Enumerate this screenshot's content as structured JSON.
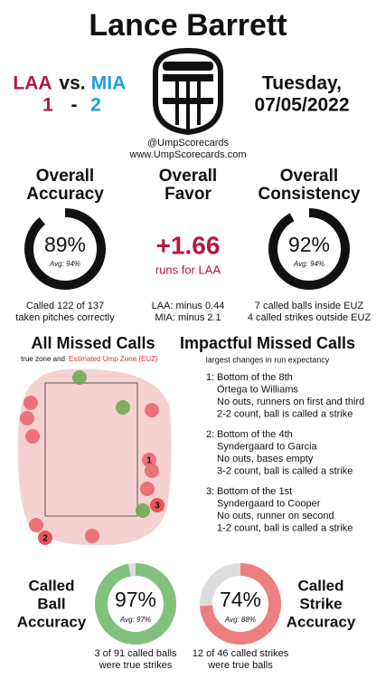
{
  "header": {
    "title": "Lance Barrett",
    "away_team": "LAA",
    "vs": "vs.",
    "home_team": "MIA",
    "away_score": "1",
    "dash": "-",
    "home_score": "2",
    "date_line1": "Tuesday,",
    "date_line2": "07/05/2022",
    "handle": "@UmpScorecards",
    "website": "www.UmpScorecards.com"
  },
  "stats": {
    "accuracy": {
      "title_line1": "Overall",
      "title_line2": "Accuracy",
      "value": 89,
      "label": "89%",
      "avg": "Avg: 94%",
      "note_line1": "Called 122 of 137",
      "note_line2": "taken pitches correctly"
    },
    "favor": {
      "title_line1": "Overall",
      "title_line2": "Favor",
      "value": "+1.66",
      "sub": "runs for LAA",
      "note_line1": "LAA: minus 0.44",
      "note_line2": "MIA: minus 2.1"
    },
    "consistency": {
      "title_line1": "Overall",
      "title_line2": "Consistency",
      "value": 92,
      "label": "92%",
      "avg": "Avg: 94%",
      "note_line1": "7 called balls inside EUZ",
      "note_line2": "4 called strikes outside EUZ"
    }
  },
  "missed_calls": {
    "title": "All Missed Calls",
    "legend_prefix": "true zone and",
    "legend_euz": "Estimated Ump Zone (EUZ)",
    "markers": [
      "1",
      "2",
      "3"
    ]
  },
  "impactful": {
    "title": "Impactful Missed Calls",
    "subtitle": "largest changes in run expectancy",
    "items": [
      {
        "num": "1:",
        "lines": [
          "Bottom of the 8th",
          "Ortega to Williams",
          "No outs, runners on first and third",
          "2-2 count, ball is called a strike"
        ]
      },
      {
        "num": "2:",
        "lines": [
          "Bottom of the 4th",
          "Syndergaard to Garcia",
          "No outs, bases empty",
          "3-2 count, ball is called a strike"
        ]
      },
      {
        "num": "3:",
        "lines": [
          "Bottom of the 1st",
          "Syndergaard to Cooper",
          "No outs, runner on second",
          "1-2 count, ball is called a strike"
        ]
      }
    ]
  },
  "bottom": {
    "ball": {
      "title_line1": "Called",
      "title_line2": "Ball",
      "title_line3": "Accuracy",
      "value": 97,
      "label": "97%",
      "avg": "Avg: 97%",
      "note_line1": "3 of 91 called balls",
      "note_line2": "were true strikes"
    },
    "strike": {
      "title_line1": "Called",
      "title_line2": "Strike",
      "title_line3": "Accuracy",
      "value": 74,
      "label": "74%",
      "avg": "Avg: 88%",
      "note_line1": "12 of 46 called strikes",
      "note_line2": "were true balls"
    }
  }
}
